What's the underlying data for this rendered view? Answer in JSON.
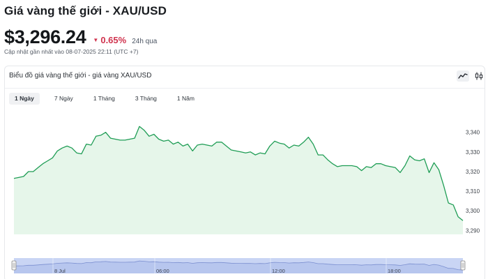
{
  "page": {
    "title": "Giá vàng thế giới - XAU/USD",
    "price": "$3,296.24",
    "change_arrow": "▼",
    "change": "0.65%",
    "change_period": "24h qua",
    "updated": "Cập nhật gần nhất vào 08-07-2025 22:11 (UTC +7)",
    "colors": {
      "down": "#d0334e",
      "line": "#1f9d55",
      "fill": "#e6f6ea",
      "navigator": "#c9d5f4"
    }
  },
  "card": {
    "title": "Biểu đồ giá vàng thế giới - giá vàng XAU/USD",
    "tools": [
      {
        "name": "line-chart-icon",
        "active": true
      },
      {
        "name": "candlestick-icon",
        "active": false
      }
    ],
    "tabs": [
      {
        "label": "1 Ngày",
        "active": true
      },
      {
        "label": "7 Ngày",
        "active": false
      },
      {
        "label": "1 Tháng",
        "active": false
      },
      {
        "label": "3 Tháng",
        "active": false
      },
      {
        "label": "1 Năm",
        "active": false
      }
    ]
  },
  "chart_data": {
    "type": "area",
    "title": "",
    "xlabel": "",
    "ylabel": "",
    "ylim": [
      3288,
      3347
    ],
    "y_ticks": [
      3290,
      3300,
      3310,
      3320,
      3330,
      3340
    ],
    "y_tick_labels": [
      "3,290",
      "3,300",
      "3,310",
      "3,320",
      "3,330",
      "3,340"
    ],
    "grid": false,
    "series": [
      {
        "values": [
          3316.5,
          3317,
          3317.5,
          3320,
          3320,
          3322,
          3324,
          3325.5,
          3327,
          3330.5,
          3332,
          3333,
          3332,
          3329.5,
          3329,
          3334,
          3333.5,
          3338,
          3338.5,
          3340,
          3337,
          3336.5,
          3336,
          3336,
          3336.5,
          3337,
          3343,
          3341,
          3338,
          3339,
          3336.5,
          3335.5,
          3336,
          3334,
          3335,
          3333,
          3334,
          3330.5,
          3333.5,
          3334,
          3333.5,
          3333,
          3335,
          3335,
          3333,
          3331,
          3330.5,
          3330,
          3329.5,
          3330,
          3328.5,
          3329.5,
          3329,
          3333,
          3335.5,
          3334.5,
          3334,
          3332,
          3333.5,
          3333,
          3335,
          3337.5,
          3334,
          3328.5,
          3328.5,
          3326,
          3324,
          3322.5,
          3323,
          3323,
          3323,
          3322.5,
          3320.5,
          3322.5,
          3322,
          3324,
          3324,
          3323,
          3322.5,
          3322,
          3319.5,
          3323,
          3328,
          3326,
          3325.5,
          3326.5,
          3319.5,
          3324.5,
          3321,
          3313,
          3304,
          3303,
          3297,
          3295
        ]
      }
    ],
    "navigator": {
      "labels": [
        "8 Jul",
        "06:00",
        "12:00",
        "18:00"
      ]
    }
  }
}
